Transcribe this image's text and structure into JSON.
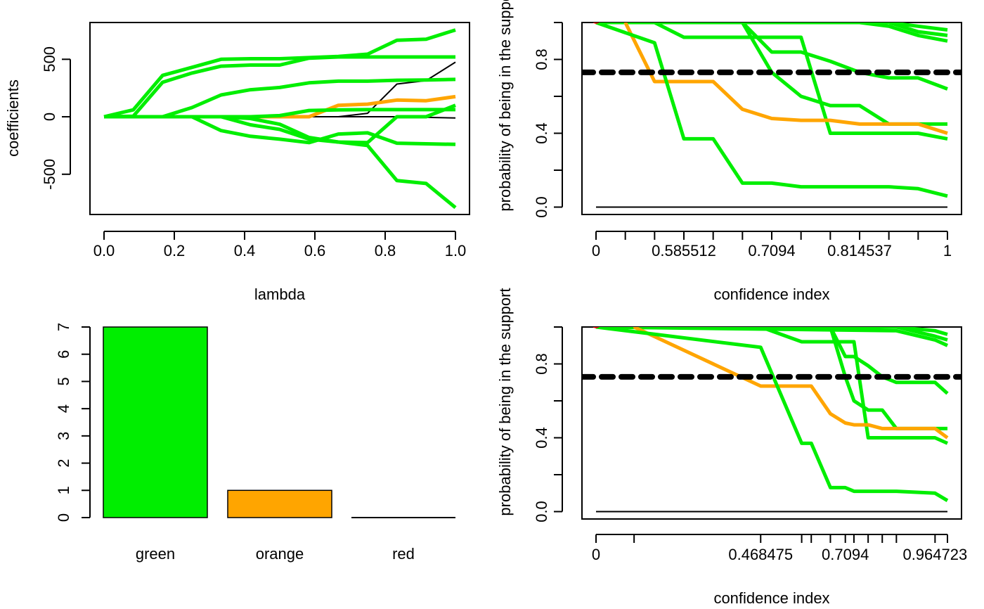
{
  "colors": {
    "green": "#00ee00",
    "orange": "#ffa500",
    "red": "#ee0000",
    "black": "#000000"
  },
  "chart_data": [
    {
      "id": "coef-path",
      "type": "line",
      "xlabel": "lambda",
      "ylabel": "coefficients",
      "xlim": [
        0,
        1
      ],
      "ylim": [
        -850,
        820
      ],
      "xticks": [
        "0.0",
        "0.2",
        "0.4",
        "0.6",
        "0.8",
        "1.0"
      ],
      "yticks": [
        "-500",
        "0",
        "500"
      ],
      "x": [
        0,
        0.0833,
        0.1667,
        0.25,
        0.3333,
        0.4167,
        0.5,
        0.5833,
        0.6667,
        0.75,
        0.8333,
        0.9167,
        1.0
      ],
      "series": [
        {
          "color": "green",
          "values": [
            0,
            60,
            360,
            430,
            500,
            505,
            505,
            515,
            525,
            545,
            665,
            675,
            755
          ]
        },
        {
          "color": "green",
          "values": [
            0,
            5,
            300,
            380,
            440,
            450,
            450,
            510,
            520,
            520,
            520,
            520,
            520
          ]
        },
        {
          "color": "green",
          "values": [
            0,
            0,
            0,
            80,
            190,
            235,
            255,
            295,
            310,
            310,
            318,
            320,
            325
          ]
        },
        {
          "color": "orange",
          "values": [
            0,
            0,
            0,
            0,
            0,
            0,
            0,
            0,
            100,
            110,
            145,
            140,
            175
          ]
        },
        {
          "color": "green",
          "values": [
            0,
            0,
            0,
            0,
            0,
            0,
            10,
            55,
            60,
            62,
            62,
            62,
            62
          ]
        },
        {
          "color": "black",
          "values": [
            0,
            0,
            0,
            0,
            0,
            0,
            0,
            0,
            0,
            30,
            285,
            315,
            475
          ]
        },
        {
          "color": "black",
          "values": [
            0,
            0,
            0,
            0,
            0,
            0,
            0,
            0,
            0,
            0,
            0,
            -5,
            -10
          ]
        },
        {
          "color": "green",
          "values": [
            0,
            0,
            0,
            0,
            0,
            -15,
            -65,
            -180,
            -220,
            -225,
            0,
            0,
            100
          ]
        },
        {
          "color": "green",
          "values": [
            0,
            0,
            0,
            0,
            -120,
            -170,
            -195,
            -225,
            -150,
            -140,
            -230,
            -235,
            -240
          ]
        },
        {
          "color": "green",
          "values": [
            0,
            0,
            0,
            0,
            0,
            -70,
            -110,
            -195,
            -220,
            -250,
            -555,
            -580,
            -790
          ]
        }
      ]
    },
    {
      "id": "support-prob-1",
      "type": "line",
      "xlabel": "confidence index",
      "ylabel": "probability of being in the support",
      "xlim": [
        0,
        12
      ],
      "ylim": [
        -0.04,
        1.0
      ],
      "threshold": 0.73,
      "xtick_positions": [
        0,
        1,
        2,
        3,
        4,
        5,
        6,
        7,
        8,
        9,
        10,
        11,
        12
      ],
      "xtick_labels": [
        {
          "at": 0,
          "text": "0"
        },
        {
          "at": 3,
          "text": "0.585512"
        },
        {
          "at": 6,
          "text": "0.7094"
        },
        {
          "at": 9,
          "text": "0.814537"
        },
        {
          "at": 12,
          "text": "1"
        }
      ],
      "yticks": [
        "0.0",
        "0.4",
        "0.8"
      ],
      "ytick_values": [
        0,
        0.4,
        0.8
      ],
      "markers": [
        {
          "x": 0,
          "y": 1.02,
          "color": "red",
          "shape": "circle"
        },
        {
          "x": 1,
          "y": 1.02,
          "color": "orange",
          "shape": "triangle"
        },
        {
          "x": 2,
          "y": 1.02,
          "color": "green",
          "shape": "triangle"
        }
      ],
      "series": [
        {
          "color": "black",
          "x": [
            0,
            12
          ],
          "values": [
            0,
            0
          ]
        },
        {
          "color": "green",
          "x": [
            0,
            9,
            10,
            11,
            12
          ],
          "values": [
            1,
            1,
            1,
            0.98,
            0.96
          ]
        },
        {
          "color": "green",
          "x": [
            0,
            9,
            10,
            11,
            12
          ],
          "values": [
            1,
            1,
            1,
            0.95,
            0.93
          ]
        },
        {
          "color": "green",
          "x": [
            0,
            9,
            10,
            11,
            12
          ],
          "values": [
            1,
            1,
            0.98,
            0.93,
            0.9
          ]
        },
        {
          "color": "green",
          "x": [
            0,
            5,
            6,
            7,
            8,
            9,
            10,
            11,
            12
          ],
          "values": [
            1,
            1,
            0.84,
            0.84,
            0.79,
            0.73,
            0.7,
            0.7,
            0.64
          ]
        },
        {
          "color": "green",
          "x": [
            0,
            5,
            6,
            7,
            8,
            9,
            10,
            11,
            12
          ],
          "values": [
            1,
            1,
            0.73,
            0.6,
            0.55,
            0.55,
            0.45,
            0.45,
            0.45
          ]
        },
        {
          "color": "green",
          "x": [
            0,
            2,
            3,
            4,
            5,
            6,
            7,
            8,
            9,
            10,
            11,
            12
          ],
          "values": [
            1,
            1,
            0.92,
            0.92,
            0.92,
            0.92,
            0.92,
            0.4,
            0.4,
            0.4,
            0.4,
            0.37
          ]
        },
        {
          "color": "orange",
          "x": [
            1,
            2,
            3,
            4,
            5,
            6,
            7,
            8,
            9,
            10,
            11,
            12
          ],
          "values": [
            1,
            0.68,
            0.68,
            0.68,
            0.53,
            0.48,
            0.47,
            0.47,
            0.45,
            0.45,
            0.45,
            0.4
          ]
        },
        {
          "color": "green",
          "x": [
            0,
            2,
            3,
            4,
            5,
            6,
            7,
            8,
            9,
            10,
            11,
            12
          ],
          "values": [
            1,
            0.89,
            0.37,
            0.37,
            0.13,
            0.13,
            0.11,
            0.11,
            0.11,
            0.11,
            0.1,
            0.06
          ]
        }
      ]
    },
    {
      "id": "color-counts",
      "type": "bar",
      "categories": [
        "green",
        "orange",
        "red"
      ],
      "values": [
        7,
        1,
        0
      ],
      "ylim": [
        0,
        7
      ],
      "yticks": [
        "0",
        "1",
        "2",
        "3",
        "4",
        "5",
        "6",
        "7"
      ]
    },
    {
      "id": "support-prob-2",
      "type": "line",
      "xlabel": "confidence index",
      "ylabel": "probability of being in the support",
      "xlim": [
        0,
        1
      ],
      "ylim": [
        -0.04,
        1.0
      ],
      "threshold": 0.73,
      "xtick_positions": [
        0,
        0.1083,
        0.4685,
        0.5852,
        0.6125,
        0.6669,
        0.7094,
        0.7339,
        0.7743,
        0.8145,
        0.8547,
        0.9647,
        1.0
      ],
      "xtick_labels": [
        {
          "at": 0,
          "text": "0"
        },
        {
          "at": 0.4685,
          "text": "0.468475"
        },
        {
          "at": 0.7094,
          "text": "0.7094"
        },
        {
          "at": 0.9647,
          "text": "0.964723"
        }
      ],
      "yticks": [
        "0.0",
        "0.4",
        "0.8"
      ],
      "ytick_values": [
        0,
        0.4,
        0.8
      ],
      "markers": [
        {
          "x": 0,
          "y": 1.02,
          "color": "red",
          "shape": "circle"
        },
        {
          "x": 0.1083,
          "y": 1.02,
          "color": "orange",
          "shape": "triangle"
        },
        {
          "x": 0.4685,
          "y": 1.02,
          "color": "green",
          "shape": "triangle"
        }
      ],
      "series": [
        {
          "color": "black",
          "x": [
            0,
            1
          ],
          "values": [
            0,
            0
          ]
        },
        {
          "color": "green",
          "x": [
            0,
            0.8547,
            0.9647,
            1.0
          ],
          "values": [
            1,
            1,
            0.98,
            0.96
          ]
        },
        {
          "color": "green",
          "x": [
            0,
            0.8547,
            0.9647,
            1.0
          ],
          "values": [
            1,
            1,
            0.95,
            0.93
          ]
        },
        {
          "color": "green",
          "x": [
            0,
            0.8547,
            0.9647,
            1.0
          ],
          "values": [
            1,
            0.98,
            0.93,
            0.9
          ]
        },
        {
          "color": "green",
          "x": [
            0,
            0.6669,
            0.7094,
            0.7339,
            0.7743,
            0.8145,
            0.8547,
            0.9647,
            1.0
          ],
          "values": [
            1,
            1,
            0.84,
            0.84,
            0.79,
            0.73,
            0.7,
            0.7,
            0.64
          ]
        },
        {
          "color": "green",
          "x": [
            0,
            0.6669,
            0.7094,
            0.7339,
            0.7743,
            0.8145,
            0.8547,
            0.9647,
            1.0
          ],
          "values": [
            1,
            1,
            0.73,
            0.6,
            0.55,
            0.55,
            0.45,
            0.45,
            0.45
          ]
        },
        {
          "color": "green",
          "x": [
            0,
            0.4685,
            0.5852,
            0.6125,
            0.6669,
            0.7094,
            0.7339,
            0.7743,
            0.8145,
            0.8547,
            0.9647,
            1.0
          ],
          "values": [
            1,
            1,
            0.92,
            0.92,
            0.92,
            0.92,
            0.92,
            0.4,
            0.4,
            0.4,
            0.4,
            0.37
          ]
        },
        {
          "color": "orange",
          "x": [
            0.1083,
            0.4685,
            0.5852,
            0.6125,
            0.6669,
            0.7094,
            0.7339,
            0.7743,
            0.8145,
            0.8547,
            0.9647,
            1.0
          ],
          "values": [
            1,
            0.68,
            0.68,
            0.68,
            0.53,
            0.48,
            0.47,
            0.47,
            0.45,
            0.45,
            0.45,
            0.4
          ]
        },
        {
          "color": "green",
          "x": [
            0,
            0.4685,
            0.5852,
            0.6125,
            0.6669,
            0.7094,
            0.7339,
            0.7743,
            0.8145,
            0.8547,
            0.9647,
            1.0
          ],
          "values": [
            1,
            0.89,
            0.37,
            0.37,
            0.13,
            0.13,
            0.11,
            0.11,
            0.11,
            0.11,
            0.1,
            0.06
          ]
        }
      ]
    }
  ]
}
